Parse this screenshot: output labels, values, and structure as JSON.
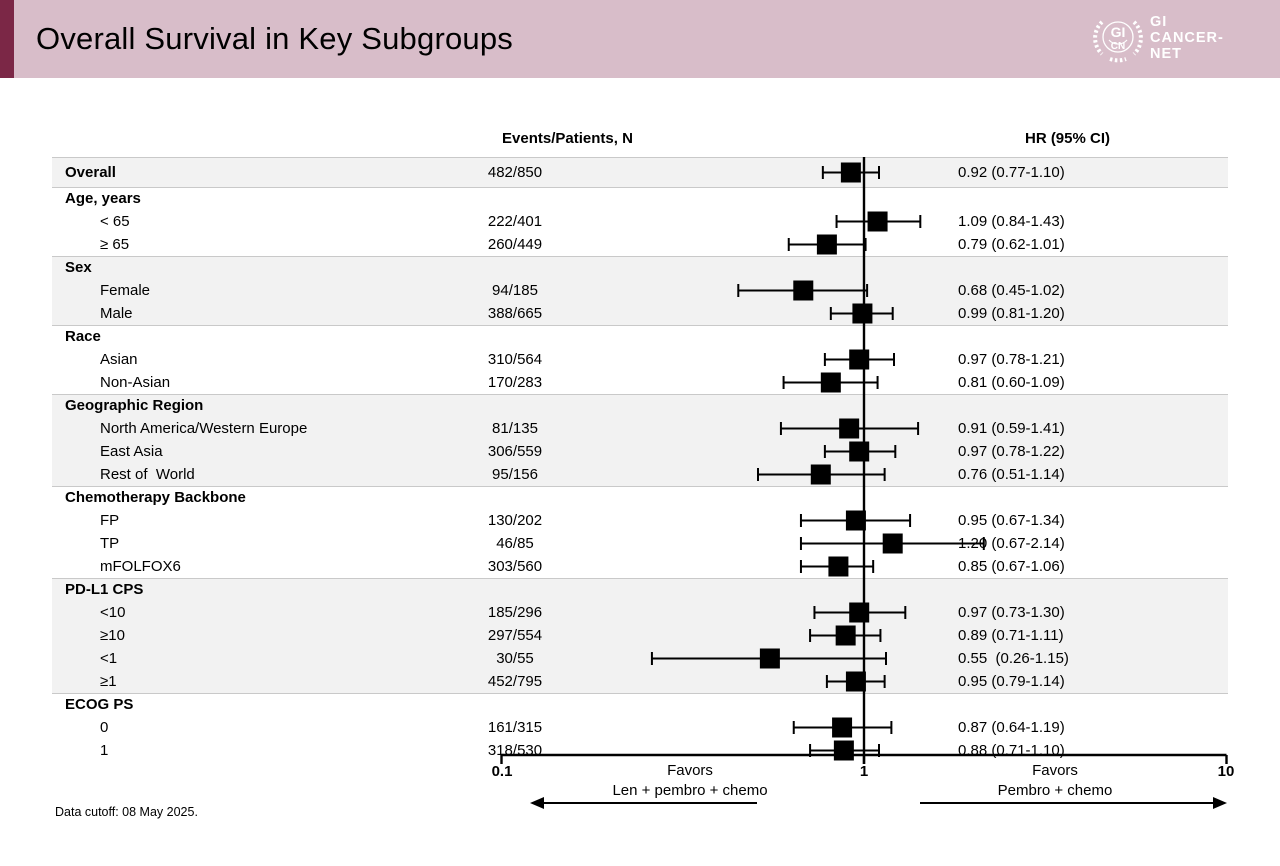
{
  "header": {
    "title": "Overall Survival in Key Subgroups",
    "logo": {
      "badge_top": "GI",
      "badge_bottom": "CN",
      "wordmark": [
        "GI",
        "CANCER-",
        "NET"
      ]
    }
  },
  "columns": {
    "events": "Events/Patients, N",
    "hr": "HR (95% CI)"
  },
  "footnote": "Data cutoff: 08 May 2025.",
  "colors": {
    "accent_bar": "#7b2746",
    "header_bg": "#d8bdc9",
    "shaded_band": "#f2f2f2",
    "marker": "#000000",
    "logo_text": "#ffffff"
  },
  "chart_data": {
    "type": "forest",
    "x_scale": "log10",
    "x_range": [
      0.1,
      10
    ],
    "reference_line": 1,
    "axis": {
      "ticks": [
        "0.1",
        "1",
        "10"
      ],
      "favors_left": [
        "Favors",
        "Len + pembro + chemo"
      ],
      "favors_right": [
        "Favors",
        "Pembro + chemo"
      ]
    },
    "sections": [
      {
        "label": "Overall",
        "shaded": true,
        "standalone": true,
        "rows": [
          {
            "label": "Overall",
            "events": "482/850",
            "hr_text": "0.92 (0.77-1.10)",
            "hr": 0.92,
            "lo": 0.77,
            "hi": 1.1
          }
        ]
      },
      {
        "label": "Age, years",
        "shaded": false,
        "rows": [
          {
            "label": "< 65",
            "events": "222/401",
            "hr_text": "1.09 (0.84-1.43)",
            "hr": 1.09,
            "lo": 0.84,
            "hi": 1.43
          },
          {
            "label": "≥ 65",
            "events": "260/449",
            "hr_text": "0.79 (0.62-1.01)",
            "hr": 0.79,
            "lo": 0.62,
            "hi": 1.01
          }
        ]
      },
      {
        "label": "Sex",
        "shaded": true,
        "rows": [
          {
            "label": "Female",
            "events": "94/185",
            "hr_text": "0.68 (0.45-1.02)",
            "hr": 0.68,
            "lo": 0.45,
            "hi": 1.02
          },
          {
            "label": "Male",
            "events": "388/665",
            "hr_text": "0.99 (0.81-1.20)",
            "hr": 0.99,
            "lo": 0.81,
            "hi": 1.2
          }
        ]
      },
      {
        "label": "Race",
        "shaded": false,
        "rows": [
          {
            "label": "Asian",
            "events": "310/564",
            "hr_text": "0.97 (0.78-1.21)",
            "hr": 0.97,
            "lo": 0.78,
            "hi": 1.21
          },
          {
            "label": "Non-Asian",
            "events": "170/283",
            "hr_text": "0.81 (0.60-1.09)",
            "hr": 0.81,
            "lo": 0.6,
            "hi": 1.09
          }
        ]
      },
      {
        "label": "Geographic Region",
        "shaded": true,
        "rows": [
          {
            "label": "North America/Western Europe",
            "events": "81/135",
            "hr_text": "0.91 (0.59-1.41)",
            "hr": 0.91,
            "lo": 0.59,
            "hi": 1.41
          },
          {
            "label": "East Asia",
            "events": "306/559",
            "hr_text": "0.97 (0.78-1.22)",
            "hr": 0.97,
            "lo": 0.78,
            "hi": 1.22
          },
          {
            "label": "Rest of  World",
            "events": "95/156",
            "hr_text": "0.76 (0.51-1.14)",
            "hr": 0.76,
            "lo": 0.51,
            "hi": 1.14
          }
        ]
      },
      {
        "label": "Chemotherapy Backbone",
        "shaded": false,
        "rows": [
          {
            "label": "FP",
            "events": "130/202",
            "hr_text": "0.95 (0.67-1.34)",
            "hr": 0.95,
            "lo": 0.67,
            "hi": 1.34
          },
          {
            "label": "TP",
            "events": "46/85",
            "hr_text": "1.20 (0.67-2.14)",
            "hr": 1.2,
            "lo": 0.67,
            "hi": 2.14
          },
          {
            "label": "mFOLFOX6",
            "events": "303/560",
            "hr_text": "0.85 (0.67-1.06)",
            "hr": 0.85,
            "lo": 0.67,
            "hi": 1.06
          }
        ]
      },
      {
        "label": "PD-L1 CPS",
        "shaded": true,
        "rows": [
          {
            "label": "<10",
            "events": "185/296",
            "hr_text": "0.97 (0.73-1.30)",
            "hr": 0.97,
            "lo": 0.73,
            "hi": 1.3
          },
          {
            "label": "≥10",
            "events": "297/554",
            "hr_text": "0.89 (0.71-1.11)",
            "hr": 0.89,
            "lo": 0.71,
            "hi": 1.11
          },
          {
            "label": "<1",
            "events": "30/55",
            "hr_text": "0.55  (0.26-1.15)",
            "hr": 0.55,
            "lo": 0.26,
            "hi": 1.15
          },
          {
            "label": "≥1",
            "events": "452/795",
            "hr_text": "0.95 (0.79-1.14)",
            "hr": 0.95,
            "lo": 0.79,
            "hi": 1.14
          }
        ]
      },
      {
        "label": "ECOG PS",
        "shaded": false,
        "rows": [
          {
            "label": "0",
            "events": "161/315",
            "hr_text": "0.87 (0.64-1.19)",
            "hr": 0.87,
            "lo": 0.64,
            "hi": 1.19
          },
          {
            "label": "1",
            "events": "318/530",
            "hr_text": "0.88 (0.71-1.10)",
            "hr": 0.88,
            "lo": 0.71,
            "hi": 1.1
          }
        ]
      }
    ]
  }
}
